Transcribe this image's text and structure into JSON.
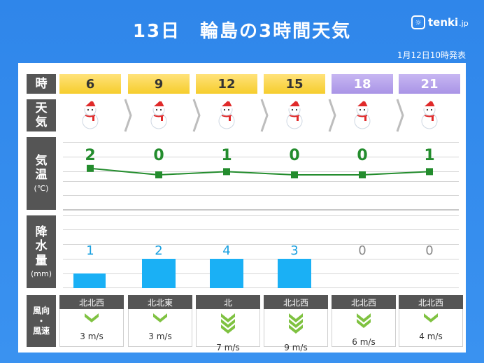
{
  "header": {
    "title": "13日　輪島の3時間天気",
    "logo_text": "tenki",
    "logo_suffix": ".jp",
    "issued": "1月12日10時発表"
  },
  "labels": {
    "time": "時",
    "weather_1": "天",
    "weather_2": "気",
    "temp_1": "気",
    "temp_2": "温",
    "temp_unit": "(℃)",
    "precip_1": "降",
    "precip_2": "水",
    "precip_3": "量",
    "precip_unit": "(mm)",
    "wind_1": "風向",
    "wind_2": "・",
    "wind_3": "風速"
  },
  "colors": {
    "background": "#2f86ea",
    "day_header": "#f6cd2c",
    "night_header": "#a994e6",
    "temp_line": "#238c2d",
    "precip_bar": "#1ab0f5",
    "wind_arrow": "#7fc241"
  },
  "forecast": [
    {
      "hour": "6",
      "period": "day",
      "weather_icon": "snowman-icon",
      "temp": "2",
      "temp_value": 2,
      "precip": "1",
      "precip_value": 1,
      "wind_dir": "北北西",
      "wind_speed": "3 m/s",
      "wind_level": 1
    },
    {
      "hour": "9",
      "period": "day",
      "weather_icon": "snowman-icon",
      "temp": "0",
      "temp_value": 0,
      "precip": "2",
      "precip_value": 2,
      "wind_dir": "北北東",
      "wind_speed": "3 m/s",
      "wind_level": 1
    },
    {
      "hour": "12",
      "period": "day",
      "weather_icon": "snowman-icon",
      "temp": "1",
      "temp_value": 1,
      "precip": "4",
      "precip_value": 4,
      "wind_dir": "北",
      "wind_speed": "7 m/s",
      "wind_level": 3
    },
    {
      "hour": "15",
      "period": "day",
      "weather_icon": "snowman-icon",
      "temp": "0",
      "temp_value": 0,
      "precip": "3",
      "precip_value": 3,
      "wind_dir": "北北西",
      "wind_speed": "9 m/s",
      "wind_level": 3
    },
    {
      "hour": "18",
      "period": "night",
      "weather_icon": "snowman-icon",
      "temp": "0",
      "temp_value": 0,
      "precip": "0",
      "precip_value": 0,
      "wind_dir": "北北西",
      "wind_speed": "6 m/s",
      "wind_level": 2
    },
    {
      "hour": "21",
      "period": "night",
      "weather_icon": "snowman-icon",
      "temp": "1",
      "temp_value": 1,
      "precip": "0",
      "precip_value": 0,
      "wind_dir": "北北西",
      "wind_speed": "4 m/s",
      "wind_level": 1
    }
  ]
}
